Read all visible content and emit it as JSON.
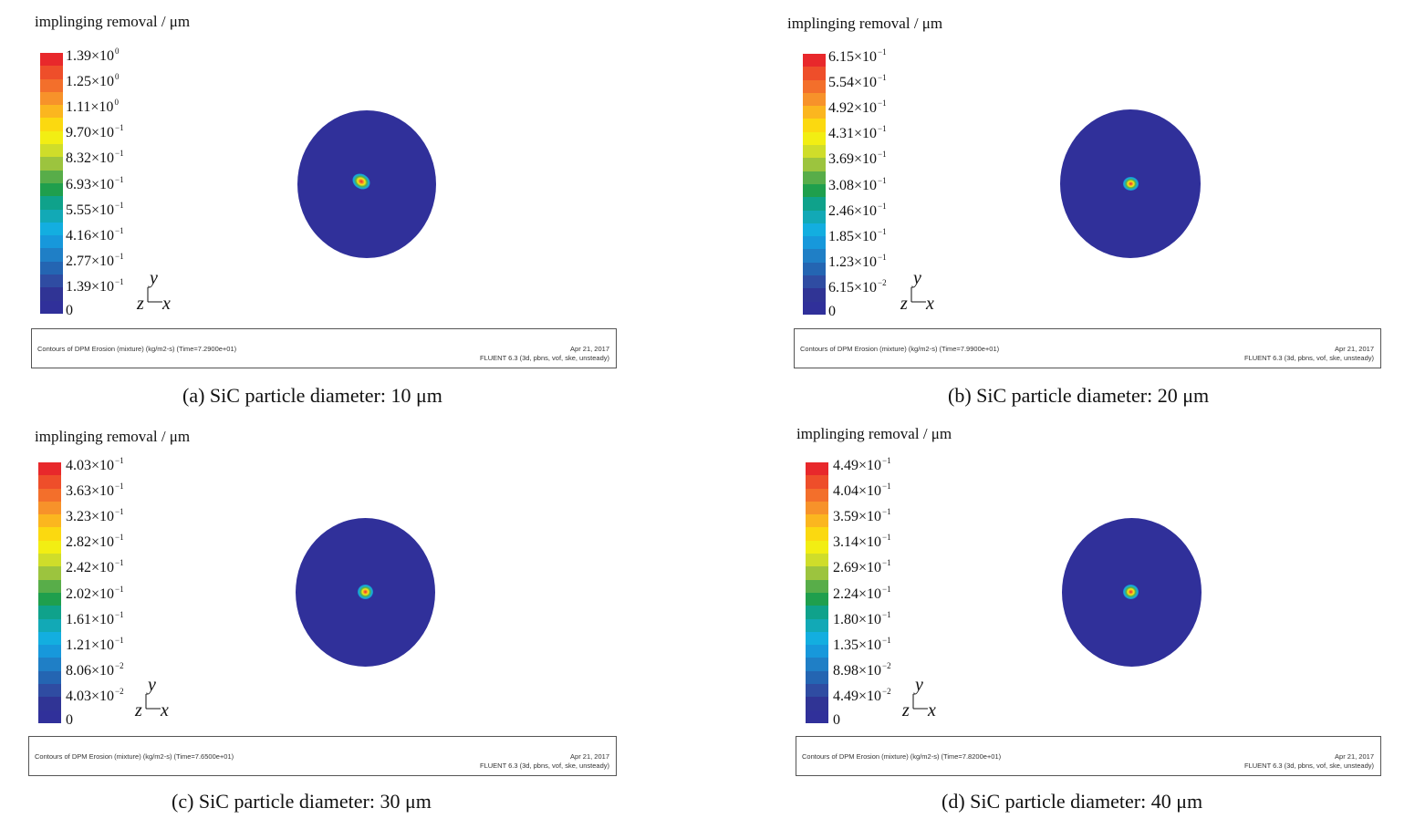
{
  "colors": {
    "levels": [
      "#e8282b",
      "#ee4e2a",
      "#f36f2b",
      "#f7922a",
      "#fbb61f",
      "#fbd910",
      "#f2ee13",
      "#cfdd2a",
      "#9cc43e",
      "#58ad49",
      "#1f9f4d",
      "#0fa28b",
      "#12a9b6",
      "#13aee0",
      "#1798db",
      "#1f7fc6",
      "#2465b2",
      "#2f4ca2",
      "#303495",
      "#30309a"
    ],
    "disk": "#30309a"
  },
  "panels": [
    {
      "title": "implinging removal / μm",
      "ticks": [
        {
          "mant": "1.39×10",
          "exp": "0"
        },
        {
          "mant": "1.25×10",
          "exp": "0"
        },
        {
          "mant": "1.11×10",
          "exp": "0"
        },
        {
          "mant": "9.70×10",
          "exp": "−1"
        },
        {
          "mant": "8.32×10",
          "exp": "−1"
        },
        {
          "mant": "6.93×10",
          "exp": "−1"
        },
        {
          "mant": "5.55×10",
          "exp": "−1"
        },
        {
          "mant": "4.16×10",
          "exp": "−1"
        },
        {
          "mant": "2.77×10",
          "exp": "−1"
        },
        {
          "mant": "1.39×10",
          "exp": "−1"
        },
        {
          "mant": "0",
          "exp": ""
        }
      ],
      "axis_x": "x",
      "axis_y": "y",
      "axis_z": "z",
      "info": "Contours of DPM Erosion (mixture)  (kg/m2-s)  (Time=7.2900e+01)",
      "date": "Apr 21, 2017",
      "solver": "FLUENT 6.3 (3d, pbns, vof, ske, unsteady)",
      "caption": "(a) SiC particle diameter: 10 μm"
    },
    {
      "title": "implinging removal / μm",
      "ticks": [
        {
          "mant": "6.15×10",
          "exp": "−1"
        },
        {
          "mant": "5.54×10",
          "exp": "−1"
        },
        {
          "mant": "4.92×10",
          "exp": "−1"
        },
        {
          "mant": "4.31×10",
          "exp": "−1"
        },
        {
          "mant": "3.69×10",
          "exp": "−1"
        },
        {
          "mant": "3.08×10",
          "exp": "−1"
        },
        {
          "mant": "2.46×10",
          "exp": "−1"
        },
        {
          "mant": "1.85×10",
          "exp": "−1"
        },
        {
          "mant": "1.23×10",
          "exp": "−1"
        },
        {
          "mant": "6.15×10",
          "exp": "−2"
        },
        {
          "mant": "0",
          "exp": ""
        }
      ],
      "axis_x": "x",
      "axis_y": "y",
      "axis_z": "z",
      "info": "Contours of DPM Erosion (mixture)  (kg/m2-s)  (Time=7.9900e+01)",
      "date": "Apr 21, 2017",
      "solver": "FLUENT 6.3 (3d, pbns, vof, ske, unsteady)",
      "caption": "(b) SiC particle diameter: 20 μm"
    },
    {
      "title": "implinging removal / μm",
      "ticks": [
        {
          "mant": "4.03×10",
          "exp": "−1"
        },
        {
          "mant": "3.63×10",
          "exp": "−1"
        },
        {
          "mant": "3.23×10",
          "exp": "−1"
        },
        {
          "mant": "2.82×10",
          "exp": "−1"
        },
        {
          "mant": "2.42×10",
          "exp": "−1"
        },
        {
          "mant": "2.02×10",
          "exp": "−1"
        },
        {
          "mant": "1.61×10",
          "exp": "−1"
        },
        {
          "mant": "1.21×10",
          "exp": "−1"
        },
        {
          "mant": "8.06×10",
          "exp": "−2"
        },
        {
          "mant": "4.03×10",
          "exp": "−2"
        },
        {
          "mant": "0",
          "exp": ""
        }
      ],
      "axis_x": "x",
      "axis_y": "y",
      "axis_z": "z",
      "info": "Contours of DPM Erosion (mixture)  (kg/m2-s)  (Time=7.6500e+01)",
      "date": "Apr 21, 2017",
      "solver": "FLUENT 6.3 (3d, pbns, vof, ske, unsteady)",
      "caption": "(c) SiC particle diameter: 30 μm"
    },
    {
      "title": "implinging removal / μm",
      "ticks": [
        {
          "mant": "4.49×10",
          "exp": "−1"
        },
        {
          "mant": "4.04×10",
          "exp": "−1"
        },
        {
          "mant": "3.59×10",
          "exp": "−1"
        },
        {
          "mant": "3.14×10",
          "exp": "−1"
        },
        {
          "mant": "2.69×10",
          "exp": "−1"
        },
        {
          "mant": "2.24×10",
          "exp": "−1"
        },
        {
          "mant": "1.80×10",
          "exp": "−1"
        },
        {
          "mant": "1.35×10",
          "exp": "−1"
        },
        {
          "mant": "8.98×10",
          "exp": "−2"
        },
        {
          "mant": "4.49×10",
          "exp": "−2"
        },
        {
          "mant": "0",
          "exp": ""
        }
      ],
      "axis_x": "x",
      "axis_y": "y",
      "axis_z": "z",
      "info": "Contours of DPM Erosion (mixture)  (kg/m2-s)  (Time=7.8200e+01)",
      "date": "Apr 21, 2017",
      "solver": "FLUENT 6.3 (3d, pbns, vof, ske, unsteady)",
      "caption": "(d) SiC particle diameter: 40 μm"
    }
  ]
}
